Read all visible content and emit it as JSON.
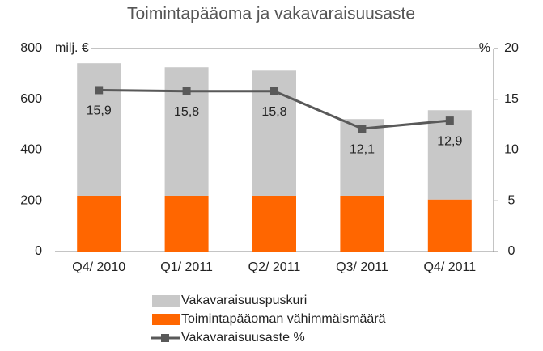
{
  "chart_data": {
    "type": "bar_line",
    "title": "Toimintapääoma ja vakavaraisuusaste",
    "ylabel": "milj. €",
    "y2label": "%",
    "categories": [
      "Q4/ 2010",
      "Q1/ 2011",
      "Q2/ 2011",
      "Q3/ 2011",
      "Q4/ 2011"
    ],
    "series": [
      {
        "name": "Vakavaraisuuspuskuri",
        "color": "#c8c8c8",
        "type": "bar",
        "values": [
          522,
          506,
          493,
          302,
          352
        ]
      },
      {
        "name": "Toimintapääoman vähimmäismäärä",
        "color": "#ff6600",
        "type": "bar",
        "values": [
          220,
          220,
          220,
          220,
          205
        ]
      },
      {
        "name": "Vakavaraisuusaste %",
        "color": "#595959",
        "type": "line",
        "axis": "y2",
        "values": [
          15.9,
          15.8,
          15.8,
          12.1,
          12.9
        ],
        "value_labels": [
          "15,9",
          "15,8",
          "15,8",
          "12,1",
          "12,9"
        ]
      }
    ],
    "ylim": [
      0,
      800
    ],
    "yticks": [
      0,
      200,
      400,
      600,
      800
    ],
    "y2lim": [
      0,
      20
    ],
    "y2ticks": [
      0,
      5,
      10,
      15,
      20
    ],
    "stacked": true,
    "grid": false
  }
}
